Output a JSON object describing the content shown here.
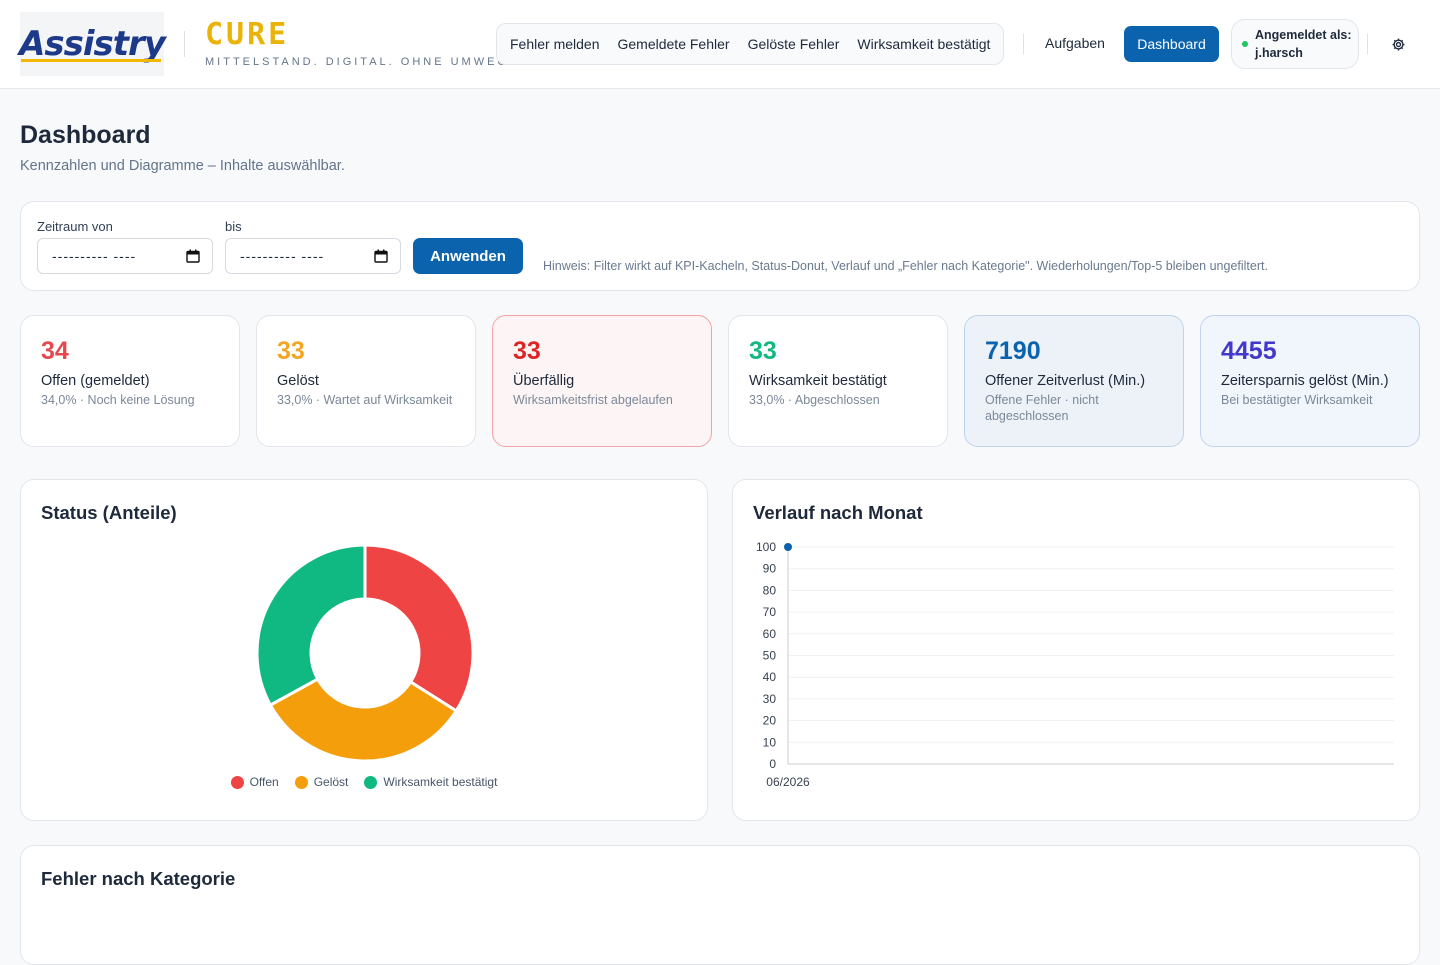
{
  "header": {
    "logo_text": "Assistry",
    "brand_name": "CURE",
    "brand_tagline": "MITTELSTAND. DIGITAL. OHNE UMWEGE.",
    "nav_group": [
      "Fehler melden",
      "Gemeldete Fehler",
      "Gelöste Fehler",
      "Wirksamkeit bestätigt"
    ],
    "nav_tasks": "Aufgaben",
    "nav_dashboard": "Dashboard",
    "user_label": "Angemeldet als:",
    "user_name": "j.harsch",
    "settings_icon": "gear-icon"
  },
  "page": {
    "title": "Dashboard",
    "subtitle": "Kennzahlen und Diagramme – Inhalte auswählbar."
  },
  "filter": {
    "from_label": "Zeitraum von",
    "to_label": "bis",
    "from_value": "---------- ----",
    "to_value": "---------- ----",
    "apply_label": "Anwenden",
    "hint": "Hinweis: Filter wirkt auf KPI-Kacheln, Status-Donut, Verlauf und „Fehler nach Kategorie\". Wiederholungen/Top-5 bleiben ungefiltert."
  },
  "kpis": [
    {
      "value": "34",
      "label": "Offen (gemeldet)",
      "sub": "34,0% · Noch keine Lösung",
      "color": "#e5484d"
    },
    {
      "value": "33",
      "label": "Gelöst",
      "sub": "33,0% · Wartet auf Wirksamkeit",
      "color": "#f5a524"
    },
    {
      "value": "33",
      "label": "Überfällig",
      "sub": "Wirksamkeitsfrist abgelaufen",
      "color": "#dc2626"
    },
    {
      "value": "33",
      "label": "Wirksamkeit bestätigt",
      "sub": "33,0% · Abgeschlossen",
      "color": "#10b981"
    },
    {
      "value": "7190",
      "label": "Offener Zeitverlust (Min.)",
      "sub": "Offene Fehler · nicht abgeschlossen",
      "color": "#0b63ad"
    },
    {
      "value": "4455",
      "label": "Zeitersparnis gelöst (Min.)",
      "sub": "Bei bestätigter Wirksamkeit",
      "color": "#4338ca"
    }
  ],
  "status_card": {
    "title": "Status (Anteile)"
  },
  "trend_card": {
    "title": "Verlauf nach Monat"
  },
  "category_card": {
    "title": "Fehler nach Kategorie"
  },
  "chart_data": [
    {
      "type": "pie",
      "variant": "donut",
      "categories": [
        "Offen",
        "Gelöst",
        "Wirksamkeit bestätigt"
      ],
      "values": [
        34,
        33,
        33
      ],
      "colors": [
        "#ef4444",
        "#f59e0b",
        "#10b981"
      ],
      "legend": "bottom"
    },
    {
      "type": "line",
      "x": [
        "06/2026"
      ],
      "series": [
        {
          "values": [
            100
          ],
          "color": "#0b63ad"
        }
      ],
      "ylim": [
        0,
        100
      ],
      "yticks": [
        0,
        10,
        20,
        30,
        40,
        50,
        60,
        70,
        80,
        90,
        100
      ],
      "grid": true
    }
  ]
}
